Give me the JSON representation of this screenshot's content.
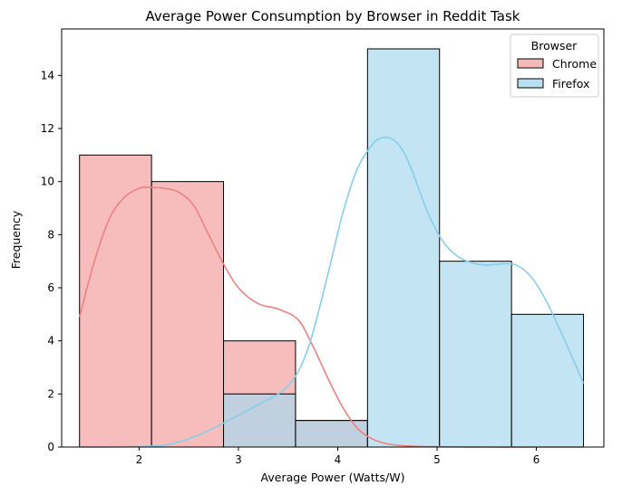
{
  "chart_data": {
    "type": "histogram",
    "title": "Average Power Consumption by Browser in Reddit Task",
    "xlabel": "Average Power (Watts/W)",
    "ylabel": "Frequency",
    "xlim": [
      1.22,
      6.68
    ],
    "ylim": [
      0,
      15.75
    ],
    "xticks": [
      2,
      3,
      4,
      5,
      6
    ],
    "yticks": [
      0,
      2,
      4,
      6,
      8,
      10,
      12,
      14
    ],
    "bin_edges": [
      1.4,
      2.125,
      2.85,
      3.575,
      4.3,
      5.025,
      5.75,
      6.475
    ],
    "grid": false,
    "legend": {
      "title": "Browser",
      "position": "top-right"
    },
    "series": [
      {
        "name": "Chrome",
        "color": "#f08080",
        "fill": "#f4a7a7",
        "counts": [
          11,
          10,
          4,
          1,
          0,
          0,
          0
        ],
        "kde": {
          "x": [
            1.4,
            1.55,
            1.7,
            1.85,
            2.0,
            2.1,
            2.25,
            2.4,
            2.55,
            2.7,
            2.85,
            3.0,
            3.2,
            3.4,
            3.6,
            3.75,
            3.9,
            4.05,
            4.2,
            4.35,
            4.5,
            4.7,
            5.0,
            5.5,
            6.0,
            6.475
          ],
          "y": [
            4.9,
            7.0,
            8.6,
            9.4,
            9.75,
            9.78,
            9.75,
            9.6,
            9.1,
            8.0,
            6.9,
            6.0,
            5.4,
            5.2,
            4.8,
            3.8,
            2.6,
            1.5,
            0.7,
            0.3,
            0.12,
            0.04,
            0.01,
            0,
            0,
            0
          ]
        }
      },
      {
        "name": "Firefox",
        "color": "#87ceeb",
        "fill": "#a8d8ee",
        "counts": [
          0,
          0,
          2,
          1,
          15,
          7,
          5
        ],
        "kde": {
          "x": [
            1.4,
            2.0,
            2.3,
            2.6,
            2.9,
            3.2,
            3.5,
            3.7,
            3.9,
            4.05,
            4.2,
            4.35,
            4.45,
            4.55,
            4.65,
            4.75,
            4.9,
            5.05,
            5.2,
            5.35,
            5.5,
            5.65,
            5.8,
            5.95,
            6.1,
            6.3,
            6.475
          ],
          "y": [
            0,
            0.02,
            0.1,
            0.45,
            1.0,
            1.6,
            2.3,
            3.7,
            6.5,
            8.8,
            10.5,
            11.4,
            11.65,
            11.6,
            11.2,
            10.4,
            8.9,
            7.8,
            7.2,
            6.95,
            6.85,
            6.9,
            6.85,
            6.4,
            5.5,
            3.9,
            2.4
          ]
        }
      }
    ]
  }
}
